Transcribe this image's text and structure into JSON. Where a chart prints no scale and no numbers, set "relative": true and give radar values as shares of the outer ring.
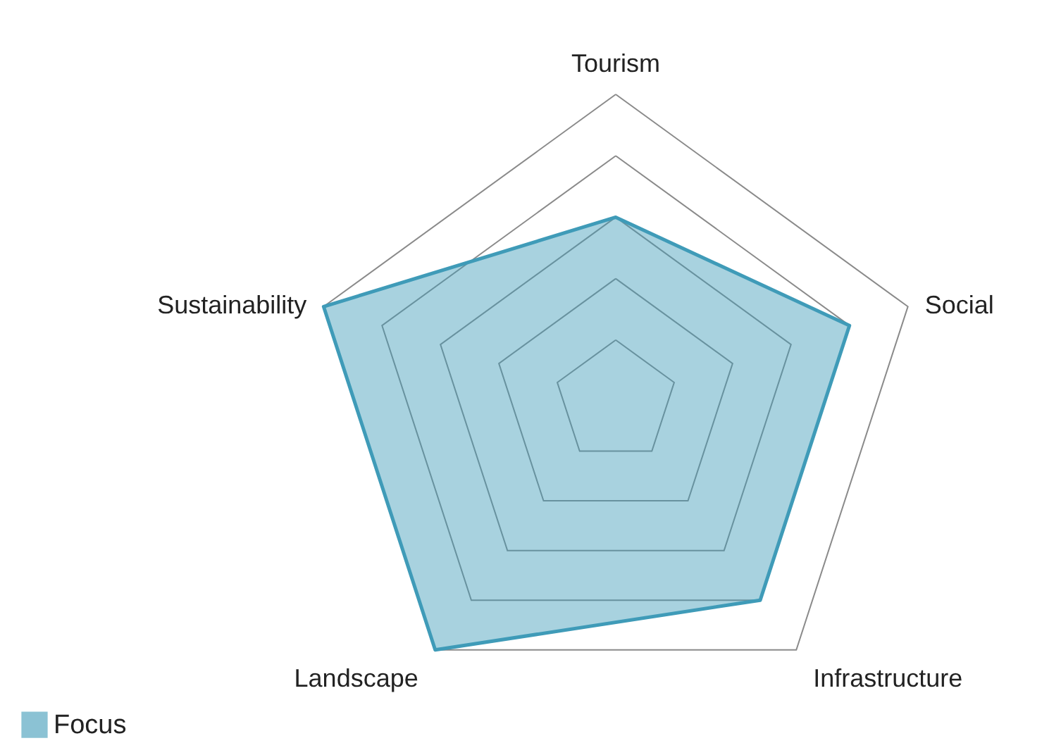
{
  "chart_data": {
    "type": "radar",
    "relative": true,
    "grid": true,
    "legend": "bottom left",
    "categories": [
      "Tourism",
      "Social",
      "Infrastructure",
      "Landscape",
      "Sustainability"
    ],
    "series": [
      {
        "name": "Focus",
        "color": "#3f9bb8",
        "values": [
          0.6,
          0.8,
          0.8,
          1.0,
          1.0
        ]
      }
    ]
  }
}
